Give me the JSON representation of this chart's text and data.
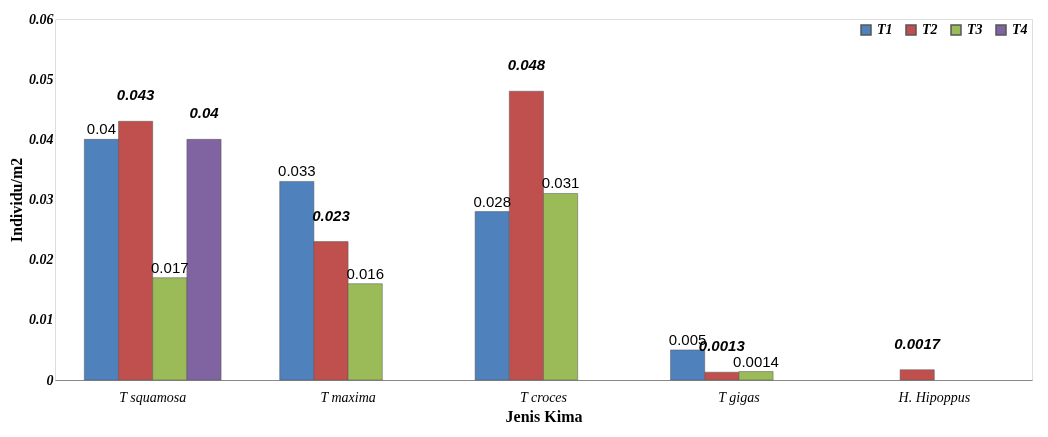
{
  "chart_data": {
    "type": "bar",
    "xlabel": "Jenis Kima",
    "ylabel": "Individu/m2",
    "categories": [
      "T squamosa",
      "T maxima",
      "T croces",
      "T gigas",
      "H. Hipoppus"
    ],
    "series": [
      {
        "name": "T1",
        "color": "#4f81bd",
        "values": [
          0.04,
          0.033,
          0.028,
          0.005,
          null
        ]
      },
      {
        "name": "T2",
        "color": "#c0504d",
        "values": [
          0.043,
          0.023,
          0.048,
          0.0013,
          0.0017
        ]
      },
      {
        "name": "T3",
        "color": "#9bbb59",
        "values": [
          0.017,
          0.016,
          0.031,
          0.0014,
          null
        ]
      },
      {
        "name": "T4",
        "color": "#8064a2",
        "values": [
          0.04,
          null,
          null,
          null,
          null
        ]
      }
    ],
    "ylim": [
      0,
      0.06
    ],
    "yticks": [
      0,
      0.01,
      0.02,
      0.03,
      0.04,
      0.05,
      0.06
    ],
    "data_labels": true,
    "grid": false,
    "legend": "top right"
  }
}
